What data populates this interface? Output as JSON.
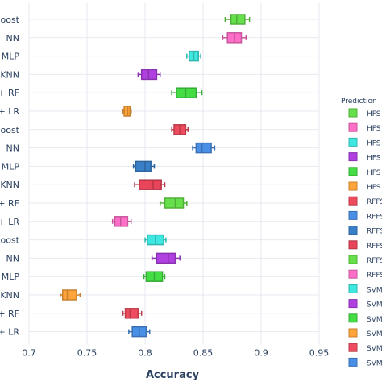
{
  "chart_data": {
    "type": "box",
    "orientation": "horizontal",
    "xlabel": "Accuracy",
    "xlim": [
      0.7,
      0.95
    ],
    "xticks": [
      "0.7",
      "0.75",
      "0.8",
      "0.85",
      "0.9",
      "0.95"
    ],
    "grid": true,
    "legend_title": "Prediction",
    "legend_position": "right",
    "categories": [
      "oost",
      "NN",
      "MLP",
      "KNN",
      "+ RF",
      "+ LR",
      "oost",
      "NN",
      "MLP",
      "KNN",
      "+ RF",
      "+ LR",
      "oost",
      "NN",
      "MLP",
      "KNN",
      "+ RF",
      "+ LR"
    ],
    "series": [
      {
        "name": "HFS",
        "category": "oost",
        "color": "#66e04a",
        "box": [
          0.869,
          0.874,
          0.879,
          0.886,
          0.89
        ]
      },
      {
        "name": "HFS",
        "category": "NN",
        "color": "#ff6ec7",
        "box": [
          0.867,
          0.871,
          0.877,
          0.883,
          0.887
        ]
      },
      {
        "name": "HFS",
        "category": "MLP",
        "color": "#3ee8e0",
        "box": [
          0.836,
          0.838,
          0.842,
          0.846,
          0.848
        ]
      },
      {
        "name": "HFS",
        "category": "KNN",
        "color": "#b040e0",
        "box": [
          0.794,
          0.797,
          0.803,
          0.81,
          0.813
        ]
      },
      {
        "name": "HFS",
        "category": "+ RF",
        "color": "#44dd44",
        "box": [
          0.823,
          0.827,
          0.835,
          0.844,
          0.849
        ]
      },
      {
        "name": "HFS",
        "category": "+ LR",
        "color": "#ffa43b",
        "box": [
          0.781,
          0.782,
          0.785,
          0.787,
          0.788
        ]
      },
      {
        "name": "RFFS",
        "category": "oost",
        "color": "#ef4b5e",
        "box": [
          0.823,
          0.825,
          0.83,
          0.835,
          0.837
        ]
      },
      {
        "name": "RFFS",
        "category": "NN",
        "color": "#4a8fe6",
        "box": [
          0.841,
          0.844,
          0.849,
          0.857,
          0.86
        ]
      },
      {
        "name": "RFFS",
        "category": "MLP",
        "color": "#3a80c8",
        "box": [
          0.79,
          0.792,
          0.8,
          0.805,
          0.808
        ]
      },
      {
        "name": "RFFS",
        "category": "KNN",
        "color": "#e8445a",
        "box": [
          0.791,
          0.795,
          0.807,
          0.814,
          0.817
        ]
      },
      {
        "name": "RFFS",
        "category": "+ RF",
        "color": "#66e04a",
        "box": [
          0.813,
          0.817,
          0.826,
          0.833,
          0.836
        ]
      },
      {
        "name": "RFFS",
        "category": "+ LR",
        "color": "#ff6ec7",
        "box": [
          0.772,
          0.774,
          0.779,
          0.785,
          0.788
        ]
      },
      {
        "name": "SVM",
        "category": "oost",
        "color": "#3ee8e0",
        "box": [
          0.8,
          0.802,
          0.809,
          0.816,
          0.818
        ]
      },
      {
        "name": "SVM",
        "category": "NN",
        "color": "#b040e0",
        "box": [
          0.806,
          0.81,
          0.82,
          0.826,
          0.83
        ]
      },
      {
        "name": "SVM",
        "category": "MLP",
        "color": "#44dd44",
        "box": [
          0.799,
          0.801,
          0.808,
          0.815,
          0.817
        ]
      },
      {
        "name": "SVM",
        "category": "KNN",
        "color": "#ffa43b",
        "box": [
          0.727,
          0.729,
          0.733,
          0.741,
          0.744
        ]
      },
      {
        "name": "SVM",
        "category": "+ RF",
        "color": "#ef4b5e",
        "box": [
          0.781,
          0.783,
          0.787,
          0.794,
          0.797
        ]
      },
      {
        "name": "SVM",
        "category": "+ LR",
        "color": "#4a8fe6",
        "box": [
          0.786,
          0.789,
          0.795,
          0.801,
          0.804
        ]
      }
    ]
  }
}
